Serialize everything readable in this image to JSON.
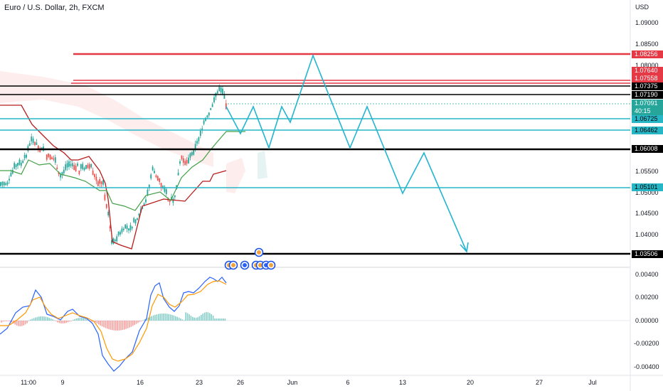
{
  "header": {
    "title": "Euro / U.S. Dollar, 2h, FXCM",
    "currency": "USD"
  },
  "price_axis_labels": [
    "1.09000",
    "1.08500",
    "1.08000",
    "1.05500",
    "1.05000",
    "1.04500",
    "1.04000"
  ],
  "oscillator_axis_labels": [
    "0.00400",
    "0.00200",
    "0.00000",
    "-0.00200",
    "-0.00400"
  ],
  "time_axis_labels": [
    "11:00",
    "9",
    "16",
    "23",
    "26",
    "Jun",
    "6",
    "13",
    "20",
    "27",
    "Jul"
  ],
  "levels": [
    {
      "price": "1.08256",
      "color": "#e53945",
      "text_color": "#ffffff"
    },
    {
      "price": "1.07640",
      "color": "#e53945",
      "text_color": "#ffffff"
    },
    {
      "price": "1.07558",
      "color": "#e53945",
      "text_color": "#ffffff"
    },
    {
      "price": "1.07375",
      "color": "#000000",
      "text_color": "#ffffff"
    },
    {
      "price": "1.07190",
      "color": "#000000",
      "text_color": "#ffffff"
    },
    {
      "price": "1.06725",
      "color": "#26b6c6",
      "text_color": "#000000"
    },
    {
      "price": "1.06462",
      "color": "#26b6c6",
      "text_color": "#000000"
    },
    {
      "price": "1.06008",
      "color": "#000000",
      "text_color": "#ffffff"
    },
    {
      "price": "1.05101",
      "color": "#26b6c6",
      "text_color": "#000000"
    },
    {
      "price": "1.03506",
      "color": "#000000",
      "text_color": "#ffffff"
    }
  ],
  "current_price": {
    "value": "1.07091",
    "countdown": "40:15",
    "color": "#26a69a"
  },
  "colors": {
    "bull": "#26a69a",
    "bear": "#ef5350",
    "projection": "#22b5d0",
    "baseline": "#b71c1c",
    "conversion": "#43a047",
    "macd": "#2962ff",
    "signal": "#ff9800"
  },
  "event_icons": [
    "us-flag-icon",
    "us-flag-icon",
    "eu-flag-icon",
    "us-flag-icon",
    "us-flag-icon",
    "eu-flag-icon",
    "us-flag-icon"
  ]
}
